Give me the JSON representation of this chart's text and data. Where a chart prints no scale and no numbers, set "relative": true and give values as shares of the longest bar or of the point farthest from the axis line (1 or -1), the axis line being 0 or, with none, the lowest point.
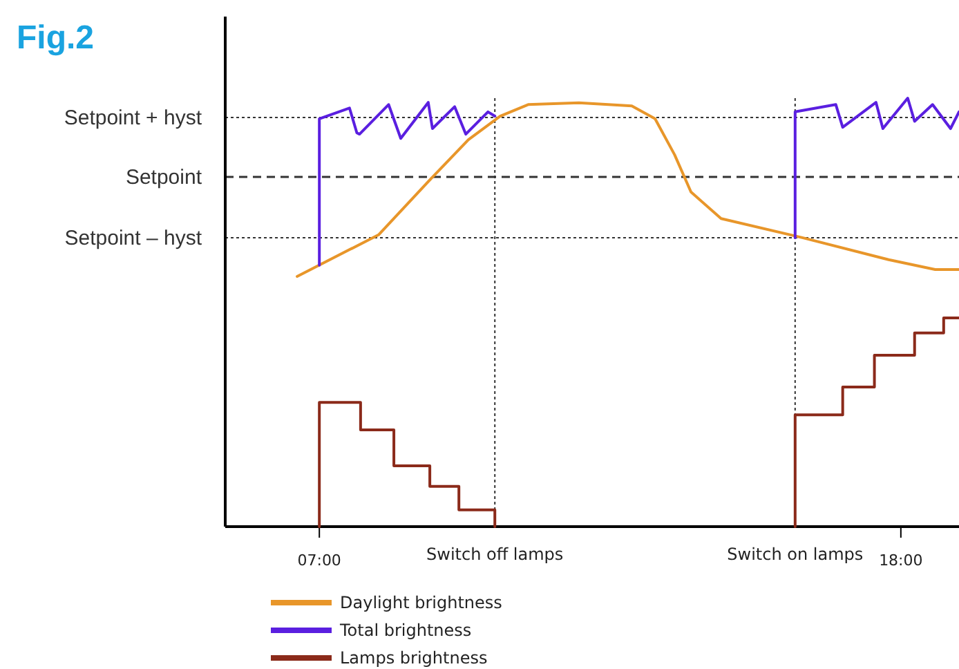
{
  "chart_data": {
    "type": "line",
    "title": "Fig.2",
    "relative": true,
    "xlim": [
      5.22,
      19.1
    ],
    "xticks": [
      {
        "value": 7,
        "label": "07:00"
      },
      {
        "value": 18,
        "label": "18:00"
      }
    ],
    "legend": "bottom",
    "grid": false,
    "series": [
      {
        "name": "Daylight brightness",
        "color": "#e8962a",
        "x": [
          6.58,
          8.12,
          9.12,
          9.82,
          10.42,
          10.95,
          11.91,
          12.91,
          13.35,
          13.72,
          14.03,
          14.6,
          16.15,
          17.77,
          18.65,
          19.1
        ],
        "values": [
          0.584,
          0.681,
          0.813,
          0.903,
          0.958,
          0.985,
          0.989,
          0.982,
          0.952,
          0.868,
          0.781,
          0.719,
          0.674,
          0.623,
          0.6,
          0.6
        ]
      },
      {
        "name": "Total brightness",
        "color": "#5a1fe0",
        "x": [
          7,
          7,
          7.57,
          7.71,
          7.76,
          8.31,
          8.54,
          9.06,
          9.14,
          9.56,
          9.77,
          10.19,
          10.32,
          13,
          16,
          16,
          16.77,
          16.9,
          17.53,
          17.66,
          18.13,
          18.26,
          18.6,
          18.94,
          19.1
        ],
        "values": [
          0.61,
          0.952,
          0.977,
          0.919,
          0.916,
          0.985,
          0.906,
          0.99,
          0.929,
          0.98,
          0.916,
          0.968,
          0.958,
          null,
          0.674,
          0.968,
          0.985,
          0.932,
          0.99,
          0.929,
          1,
          0.946,
          0.985,
          0.929,
          0.968
        ]
      },
      {
        "name": "Lamps brightness",
        "type": "step",
        "color": "#8b2a1a",
        "x": [
          7,
          7,
          7.78,
          8.41,
          9.09,
          9.64,
          10.32,
          13,
          16,
          16,
          16.9,
          17.5,
          18.26,
          18.81,
          19.1
        ],
        "values": [
          0,
          0.29,
          0.226,
          0.142,
          0.094,
          0.039,
          0,
          null,
          0,
          0.261,
          0.326,
          0.4,
          0.452,
          0.487,
          0.487
        ]
      }
    ],
    "ref_lines": [
      {
        "axis": "y",
        "value": 0.955,
        "label": "Setpoint + hyst",
        "line_style": "dotted"
      },
      {
        "axis": "y",
        "value": 0.816,
        "label": "Setpoint",
        "line_style": "dashed"
      },
      {
        "axis": "y",
        "value": 0.674,
        "label": "Setpoint – hyst",
        "line_style": "dotted"
      },
      {
        "axis": "x",
        "value": 10.32,
        "label": "Switch off lamps",
        "line_style": "dotted"
      },
      {
        "axis": "x",
        "value": 16,
        "label": "Switch on lamps",
        "line_style": "dotted"
      }
    ]
  }
}
